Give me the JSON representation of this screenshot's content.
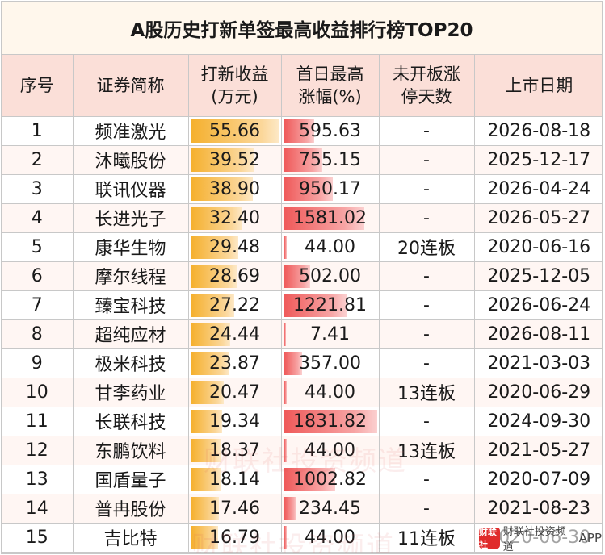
{
  "title": "A股历史打新单签最高收益排行榜TOP20",
  "headers": {
    "rank": "序号",
    "name": "证券简称",
    "profit_line1": "打新收益",
    "profit_line2": "(万元)",
    "gain_line1": "首日最高",
    "gain_line2": "涨幅(%)",
    "limit_line1": "未开板涨",
    "limit_line2": "停天数",
    "date": "上市日期"
  },
  "rows": [
    {
      "rank": "1",
      "name": "频准激光",
      "profit": "55.66",
      "profit_num": 55.66,
      "gain": "595.63",
      "gain_num": 595.63,
      "limit": "-",
      "date": "2026-08-18"
    },
    {
      "rank": "2",
      "name": "沐曦股份",
      "profit": "39.52",
      "profit_num": 39.52,
      "gain": "755.15",
      "gain_num": 755.15,
      "limit": "-",
      "date": "2025-12-17"
    },
    {
      "rank": "3",
      "name": "联讯仪器",
      "profit": "38.90",
      "profit_num": 38.9,
      "gain": "950.17",
      "gain_num": 950.17,
      "limit": "-",
      "date": "2026-04-24"
    },
    {
      "rank": "4",
      "name": "长进光子",
      "profit": "32.40",
      "profit_num": 32.4,
      "gain": "1581.02",
      "gain_num": 1581.02,
      "limit": "-",
      "date": "2026-05-27"
    },
    {
      "rank": "5",
      "name": "康华生物",
      "profit": "29.48",
      "profit_num": 29.48,
      "gain": "44.00",
      "gain_num": 44.0,
      "limit": "20连板",
      "date": "2020-06-16"
    },
    {
      "rank": "6",
      "name": "摩尔线程",
      "profit": "28.69",
      "profit_num": 28.69,
      "gain": "502.00",
      "gain_num": 502.0,
      "limit": "-",
      "date": "2025-12-05"
    },
    {
      "rank": "7",
      "name": "臻宝科技",
      "profit": "27.22",
      "profit_num": 27.22,
      "gain": "1221.81",
      "gain_num": 1221.81,
      "limit": "-",
      "date": "2026-06-24"
    },
    {
      "rank": "8",
      "name": "超纯应材",
      "profit": "24.44",
      "profit_num": 24.44,
      "gain": "7.41",
      "gain_num": 7.41,
      "limit": "-",
      "date": "2026-08-11"
    },
    {
      "rank": "9",
      "name": "极米科技",
      "profit": "23.87",
      "profit_num": 23.87,
      "gain": "357.00",
      "gain_num": 357.0,
      "limit": "-",
      "date": "2021-03-03"
    },
    {
      "rank": "10",
      "name": "甘李药业",
      "profit": "20.47",
      "profit_num": 20.47,
      "gain": "44.00",
      "gain_num": 44.0,
      "limit": "13连板",
      "date": "2020-06-29"
    },
    {
      "rank": "11",
      "name": "长联科技",
      "profit": "19.34",
      "profit_num": 19.34,
      "gain": "1831.82",
      "gain_num": 1831.82,
      "limit": "-",
      "date": "2024-09-30"
    },
    {
      "rank": "12",
      "name": "东鹏饮料",
      "profit": "18.37",
      "profit_num": 18.37,
      "gain": "44.00",
      "gain_num": 44.0,
      "limit": "13连板",
      "date": "2021-05-27"
    },
    {
      "rank": "13",
      "name": "国盾量子",
      "profit": "18.14",
      "profit_num": 18.14,
      "gain": "1002.82",
      "gain_num": 1002.82,
      "limit": "-",
      "date": "2020-07-09"
    },
    {
      "rank": "14",
      "name": "普冉股份",
      "profit": "17.46",
      "profit_num": 17.46,
      "gain": "234.45",
      "gain_num": 234.45,
      "limit": "-",
      "date": "2021-08-23"
    },
    {
      "rank": "15",
      "name": "吉比特",
      "profit": "16.79",
      "profit_num": 16.79,
      "gain": "44.00",
      "gain_num": 44.0,
      "limit": "11连板",
      "date": "2020-06-30"
    }
  ],
  "watermark": {
    "text": "财联社投资频道",
    "logo": "财联社",
    "app": "APP"
  },
  "colors": {
    "title_bg": "#fff7ec",
    "header_bg": "#fbdfd8",
    "alt_row_bg": "#fff6f3",
    "profit_bar": "#f5b02e",
    "gain_bar": "#ef5a5a",
    "grid": "#c8c8c8"
  }
}
